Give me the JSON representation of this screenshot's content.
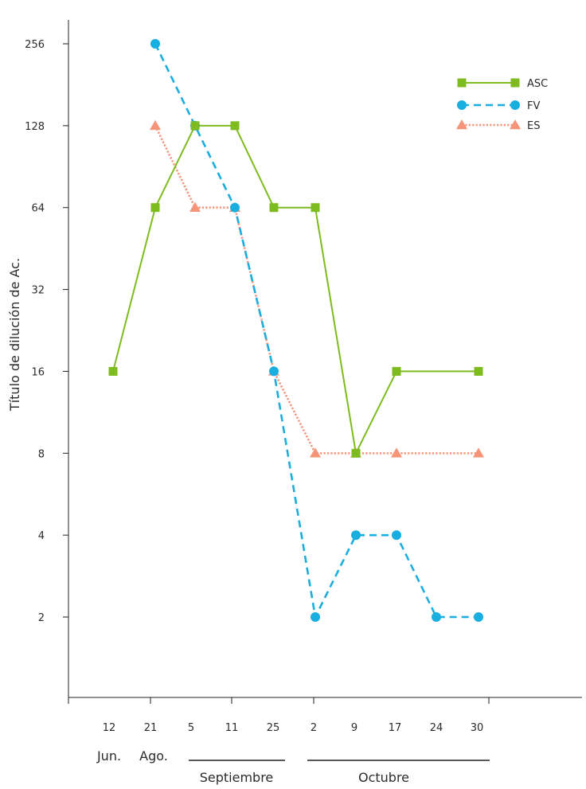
{
  "chart_data": {
    "type": "line",
    "title": "",
    "ylabel": "Título de dilución de Ac.",
    "xlabel": "",
    "yscale": "log2",
    "ylim": [
      1,
      320
    ],
    "yticks": [
      2,
      4,
      8,
      16,
      32,
      64,
      128,
      256
    ],
    "ytick_labels": [
      "2",
      "4",
      "8",
      "16",
      "32",
      "64",
      "128",
      "256"
    ],
    "categories": [
      "12",
      "21",
      "5",
      "11",
      "25",
      "2",
      "9",
      "17",
      "24",
      "30"
    ],
    "month_labels": [
      "Jun.",
      "Ago.",
      "Septiembre",
      "Octubre"
    ],
    "legend_position": "top-right",
    "grid": false,
    "series": [
      {
        "name": "ASC",
        "color": "#7dbb1e",
        "marker": "square",
        "linestyle": "solid",
        "values": [
          16,
          64,
          128,
          128,
          64,
          64,
          8,
          16,
          null,
          16
        ]
      },
      {
        "name": "FV",
        "color": "#18aee0",
        "marker": "circle",
        "linestyle": "dashed",
        "values": [
          null,
          256,
          128,
          64,
          16,
          2,
          4,
          4,
          2,
          2
        ]
      },
      {
        "name": "ES",
        "color": "#f69479",
        "marker": "triangle",
        "linestyle": "dotted",
        "values": [
          null,
          128,
          64,
          64,
          16,
          8,
          8,
          8,
          null,
          8
        ]
      }
    ]
  }
}
